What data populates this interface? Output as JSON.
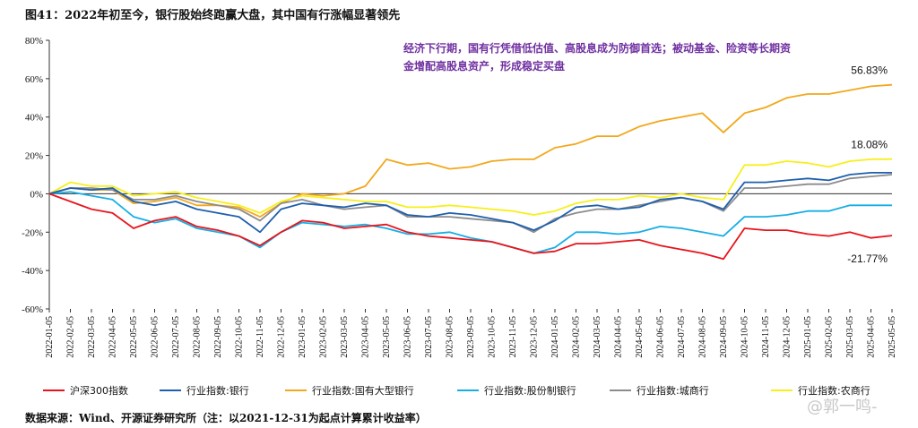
{
  "title": "图41：2022年初至今，银行股始终跑赢大盘，其中国有行涨幅显著领先",
  "note": "经济下行期，国有行凭借低估值、高股息成为防御首选；被动基金、险资等长期资金增配高股息资产，形成稳定买盘",
  "source": "数据来源：Wind、开源证券研究所（注：以2021-12-31为起点计算累计收益率）",
  "watermark": "@郭一鸣-",
  "chart_data": {
    "type": "line",
    "ylim": [
      -60,
      80
    ],
    "yticks": [
      "80%",
      "60%",
      "40%",
      "20%",
      "0%",
      "-20%",
      "-40%",
      "-60%"
    ],
    "x": [
      "2022-01-05",
      "2022-02-05",
      "2022-03-05",
      "2022-04-05",
      "2022-05-05",
      "2022-06-05",
      "2022-07-05",
      "2022-08-05",
      "2022-09-05",
      "2022-10-05",
      "2022-11-05",
      "2022-12-05",
      "2023-01-05",
      "2023-02-05",
      "2023-03-05",
      "2023-04-05",
      "2023-05-05",
      "2023-06-05",
      "2023-07-05",
      "2023-08-05",
      "2023-09-05",
      "2023-10-05",
      "2023-11-05",
      "2023-12-05",
      "2024-01-05",
      "2024-02-05",
      "2024-03-05",
      "2024-04-05",
      "2024-05-05",
      "2024-06-05",
      "2024-07-05",
      "2024-08-05",
      "2024-09-05",
      "2024-10-05",
      "2024-11-05",
      "2024-12-05",
      "2025-01-05",
      "2025-02-05",
      "2025-03-05",
      "2025-04-05",
      "2025-05-05"
    ],
    "series": [
      {
        "name": "沪深300指数",
        "color": "#e8141b",
        "values": [
          0,
          -4,
          -8,
          -10,
          -18,
          -14,
          -12,
          -17,
          -19,
          -22,
          -27,
          -20,
          -14,
          -15,
          -18,
          -17,
          -16,
          -20,
          -22,
          -23,
          -24,
          -25,
          -28,
          -31,
          -30,
          -26,
          -26,
          -25,
          -24,
          -27,
          -29,
          -31,
          -34,
          -18,
          -19,
          -19,
          -21,
          -22,
          -20,
          -23,
          -21.77
        ]
      },
      {
        "name": "行业指数:银行",
        "color": "#1f5fad",
        "values": [
          0,
          3,
          2,
          3,
          -4,
          -6,
          -4,
          -8,
          -10,
          -12,
          -20,
          -8,
          -5,
          -6,
          -7,
          -5,
          -6,
          -11,
          -12,
          -10,
          -11,
          -13,
          -15,
          -19,
          -14,
          -7,
          -6,
          -8,
          -7,
          -3,
          -2,
          -4,
          -8,
          6,
          6,
          7,
          8,
          7,
          10,
          11,
          11
        ]
      },
      {
        "name": "行业指数:国有大型银行",
        "color": "#f2a81c",
        "values": [
          0,
          3,
          2,
          2,
          -5,
          -4,
          -2,
          -6,
          -6,
          -7,
          -12,
          -5,
          0,
          -1,
          0,
          4,
          18,
          15,
          16,
          13,
          14,
          17,
          18,
          18,
          24,
          26,
          30,
          30,
          35,
          38,
          40,
          42,
          32,
          42,
          45,
          50,
          52,
          52,
          54,
          56,
          56.83
        ]
      },
      {
        "name": "行业指数:股份制银行",
        "color": "#17aee4",
        "values": [
          0,
          1,
          -1,
          -3,
          -12,
          -15,
          -13,
          -18,
          -20,
          -22,
          -28,
          -20,
          -15,
          -16,
          -17,
          -16,
          -18,
          -21,
          -21,
          -20,
          -23,
          -25,
          -28,
          -31,
          -28,
          -20,
          -20,
          -21,
          -20,
          -17,
          -18,
          -20,
          -22,
          -12,
          -12,
          -11,
          -9,
          -9,
          -6,
          -6,
          -6
        ]
      },
      {
        "name": "行业指数:城商行",
        "color": "#8c8c8c",
        "values": [
          0,
          3,
          3,
          2,
          -3,
          -3,
          -1,
          -4,
          -6,
          -8,
          -14,
          -5,
          -3,
          -6,
          -8,
          -7,
          -6,
          -12,
          -12,
          -12,
          -13,
          -14,
          -15,
          -20,
          -13,
          -10,
          -8,
          -8,
          -6,
          -4,
          -2,
          -4,
          -9,
          3,
          3,
          4,
          5,
          5,
          8,
          9,
          10
        ]
      },
      {
        "name": "行业指数:农商行",
        "color": "#f7ef1a",
        "values": [
          0,
          6,
          4,
          4,
          -1,
          0,
          1,
          -2,
          -4,
          -6,
          -10,
          -4,
          -1,
          -2,
          -3,
          -4,
          -4,
          -7,
          -7,
          -6,
          -7,
          -8,
          -9,
          -11,
          -9,
          -5,
          -3,
          -3,
          -1,
          -2,
          0,
          -2,
          -3,
          15,
          15,
          17,
          16,
          14,
          17,
          18,
          18.08
        ]
      }
    ],
    "end_labels": [
      {
        "text": "56.83%",
        "series": 2
      },
      {
        "text": "18.08%",
        "series": 5
      },
      {
        "text": "-21.77%",
        "series": 0
      }
    ],
    "legend_position": "bottom"
  }
}
